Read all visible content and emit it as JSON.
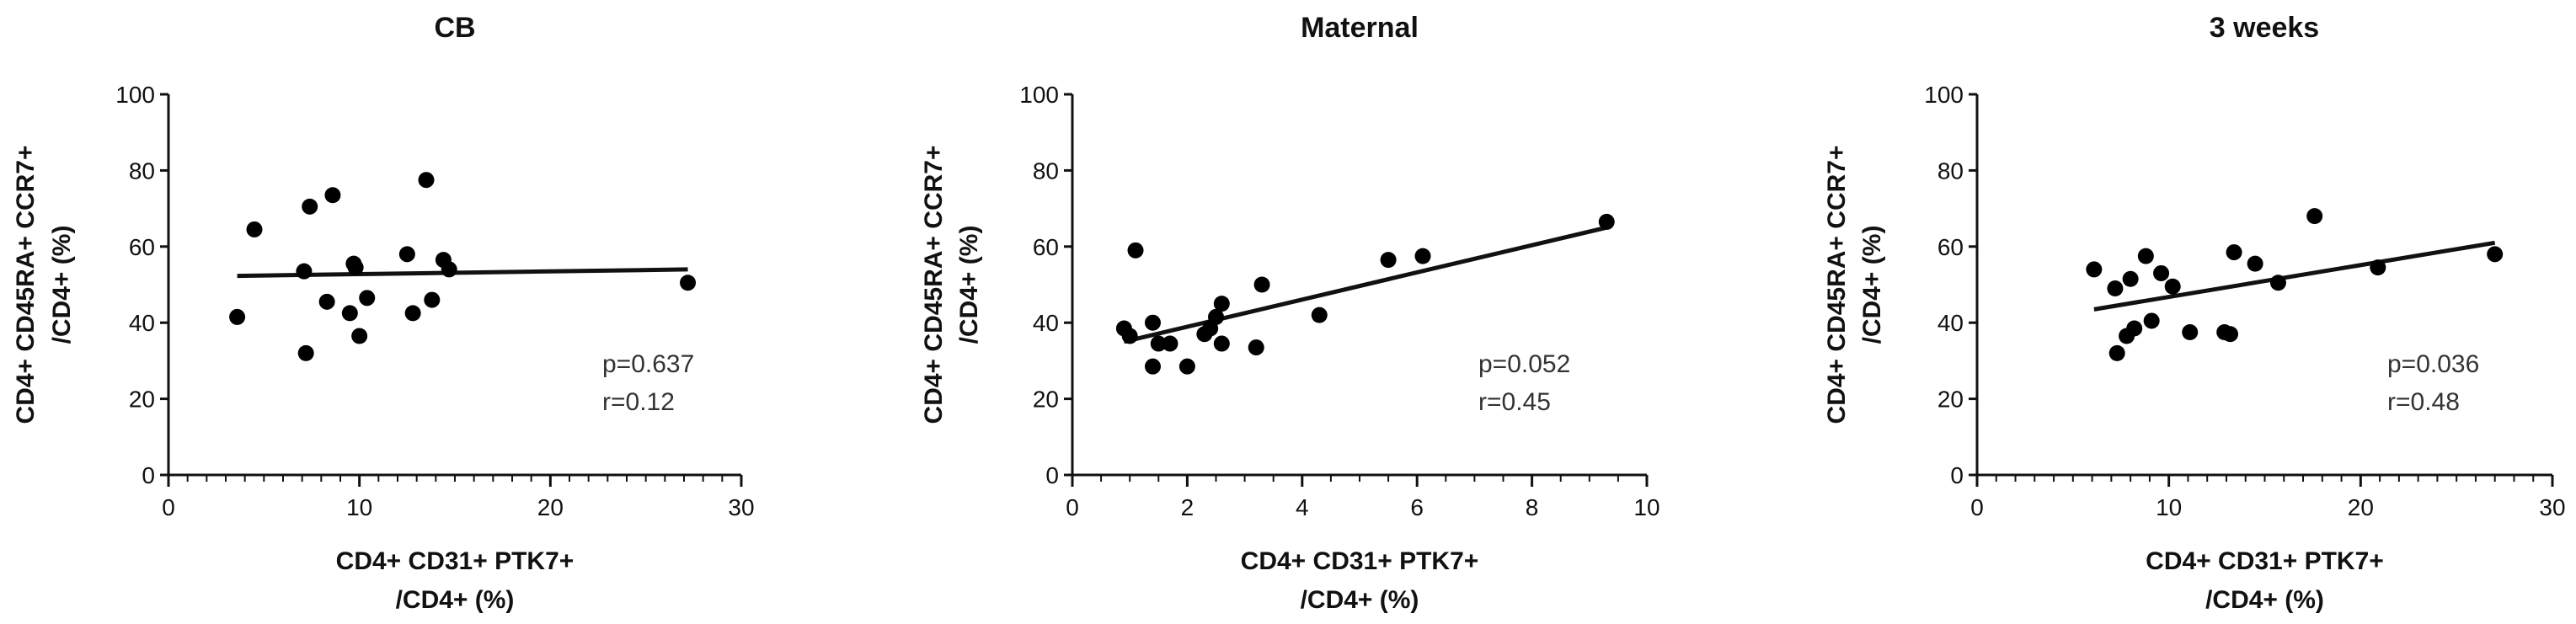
{
  "chart_data": [
    {
      "type": "scatter",
      "title": "CB",
      "xlabel": [
        "CD4+ CD31+ PTK7+",
        "/CD4+ (%)"
      ],
      "ylabel": [
        "CD4+ CD45RA+ CCR7+",
        "/CD4+ (%)"
      ],
      "xlim": [
        0,
        30
      ],
      "ylim": [
        0,
        100
      ],
      "xticks": [
        0,
        10,
        20,
        30
      ],
      "yticks": [
        0,
        20,
        40,
        60,
        80,
        100
      ],
      "x_minor_step": 1,
      "x": [
        3.6,
        4.5,
        7.1,
        7.2,
        7.4,
        8.3,
        8.6,
        9.5,
        9.7,
        9.8,
        10.0,
        10.4,
        12.5,
        12.8,
        13.5,
        13.8,
        14.4,
        14.7,
        27.2
      ],
      "y": [
        41.5,
        64.5,
        53.5,
        32.0,
        70.5,
        45.5,
        73.5,
        42.5,
        55.5,
        54.5,
        36.5,
        46.5,
        58.0,
        42.5,
        77.5,
        46.0,
        56.5,
        54.0,
        50.5
      ],
      "fit": {
        "x": [
          3.6,
          27.2
        ],
        "y": [
          52.3,
          54.0
        ]
      },
      "annotations": [
        "p=0.637",
        "r=0.12"
      ]
    },
    {
      "type": "scatter",
      "title": "Maternal",
      "xlabel": [
        "CD4+ CD31+ PTK7+",
        "/CD4+ (%)"
      ],
      "ylabel": [
        "CD4+ CD45RA+ CCR7+",
        "/CD4+ (%)"
      ],
      "xlim": [
        0,
        10
      ],
      "ylim": [
        0,
        100
      ],
      "xticks": [
        0,
        2,
        4,
        6,
        8,
        10
      ],
      "yticks": [
        0,
        20,
        40,
        60,
        80,
        100
      ],
      "x_minor_step": 0.5,
      "x": [
        0.9,
        1.0,
        1.1,
        1.4,
        1.4,
        1.5,
        1.7,
        2.0,
        2.3,
        2.4,
        2.5,
        2.6,
        2.6,
        3.2,
        3.3,
        4.3,
        5.5,
        6.1,
        9.3
      ],
      "y": [
        38.5,
        36.5,
        59.0,
        40.0,
        28.5,
        34.5,
        34.5,
        28.5,
        37.0,
        38.5,
        41.5,
        34.5,
        45.0,
        33.5,
        50.0,
        42.0,
        56.5,
        57.5,
        66.5
      ],
      "fit": {
        "x": [
          0.9,
          9.3
        ],
        "y": [
          35.0,
          65.0
        ]
      },
      "annotations": [
        "p=0.052",
        "r=0.45"
      ]
    },
    {
      "type": "scatter",
      "title": "3 weeks",
      "xlabel": [
        "CD4+ CD31+ PTK7+",
        "/CD4+ (%)"
      ],
      "ylabel": [
        "CD4+ CD45RA+ CCR7+",
        "/CD4+ (%)"
      ],
      "xlim": [
        0,
        30
      ],
      "ylim": [
        0,
        100
      ],
      "xticks": [
        0,
        10,
        20,
        30
      ],
      "yticks": [
        0,
        20,
        40,
        60,
        80,
        100
      ],
      "x_minor_step": 1,
      "x": [
        6.1,
        7.2,
        7.3,
        7.8,
        8.0,
        8.2,
        8.8,
        9.1,
        9.6,
        10.2,
        11.1,
        12.9,
        13.2,
        13.4,
        14.5,
        15.7,
        17.6,
        20.9,
        27.0
      ],
      "y": [
        54.0,
        49.0,
        32.0,
        36.5,
        51.5,
        38.5,
        57.5,
        40.5,
        53.0,
        49.5,
        37.5,
        37.5,
        37.0,
        58.5,
        55.5,
        50.5,
        68.0,
        54.5,
        58.0
      ],
      "fit": {
        "x": [
          6.1,
          27.0
        ],
        "y": [
          43.5,
          61.0
        ]
      },
      "annotations": [
        "p=0.036",
        "r=0.48"
      ]
    }
  ]
}
